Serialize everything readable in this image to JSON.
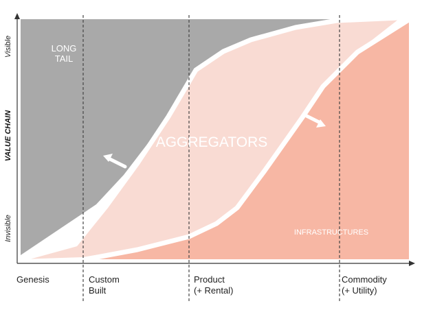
{
  "y_axis": {
    "title": "VALUE CHAIN",
    "top_label": "Visible",
    "bottom_label": "Invisible"
  },
  "x_axis": {
    "stages": [
      {
        "line1": "Genesis",
        "line2": ""
      },
      {
        "line1": "Custom",
        "line2": "Built"
      },
      {
        "line1": "Product",
        "line2": "(+ Rental)"
      },
      {
        "line1": "Commodity",
        "line2": "(+ Utility)"
      }
    ]
  },
  "regions": {
    "long_tail": {
      "line1": "LONG",
      "line2": "TAIL",
      "color": "#a9a9a9"
    },
    "aggregators": {
      "label": "AGGREGATORS",
      "color": "#f9dbd3"
    },
    "infrastructures": {
      "label": "INFRASTRUCTURES",
      "color": "#f7b7a4"
    }
  },
  "colors": {
    "axis": "#333333",
    "divider": "#444444",
    "boundary": "#ffffff",
    "arrow": "#ffffff"
  }
}
